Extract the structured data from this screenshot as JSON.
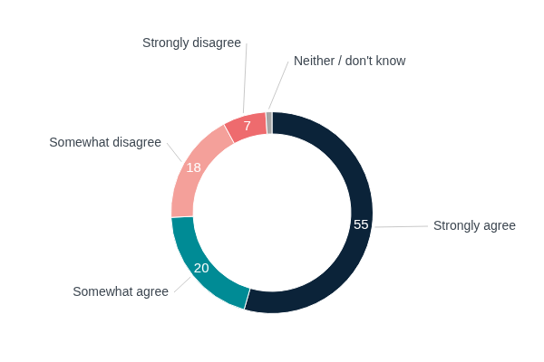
{
  "chart_data": {
    "type": "doughnut",
    "categories": [
      "Strongly agree",
      "Somewhat agree",
      "Somewhat disagree",
      "Strongly disagree",
      "Neither / don't know"
    ],
    "values": [
      55,
      20,
      18,
      7,
      1
    ],
    "colors": [
      "#0b2339",
      "#008b95",
      "#f4a09a",
      "#ee6b6e",
      "#a6a6a6"
    ],
    "data_labels": true,
    "value_labels": [
      "55",
      "20",
      "18",
      "7",
      null
    ]
  }
}
